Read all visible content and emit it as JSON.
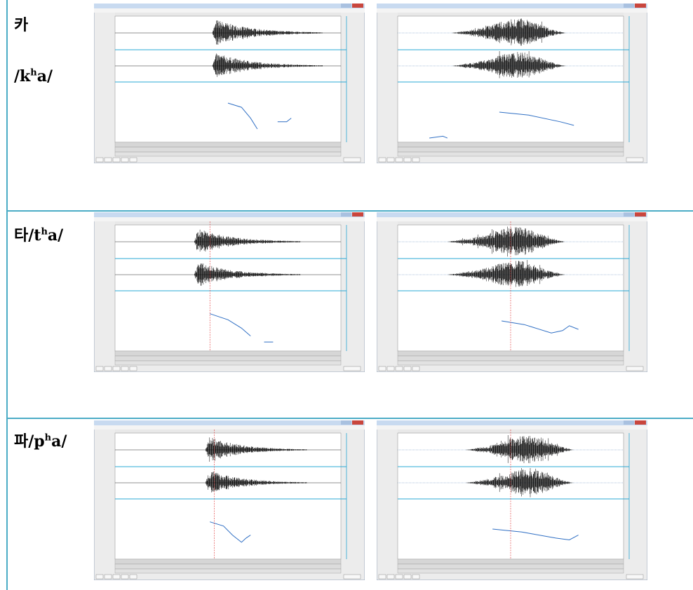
{
  "rows": [
    {
      "hangul": "카",
      "ipa_base": "/k",
      "ipa_sup": "h",
      "ipa_end": "a/"
    },
    {
      "hangul": "타",
      "ipa_base": "/t",
      "ipa_sup": "h",
      "ipa_end": "a/"
    },
    {
      "hangul": "파",
      "ipa_base": "/p",
      "ipa_sup": "h",
      "ipa_end": "a/"
    }
  ]
}
